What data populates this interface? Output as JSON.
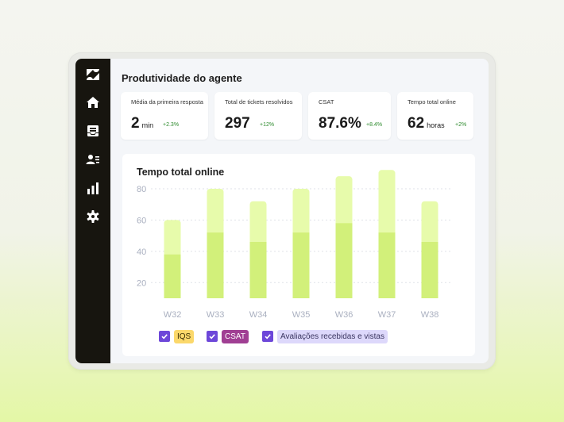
{
  "page": {
    "title": "Produtividade do agente"
  },
  "nav": {
    "items": [
      "logo",
      "home",
      "inbox",
      "contacts",
      "reports",
      "settings"
    ]
  },
  "cards": [
    {
      "label": "Média da primeira resposta",
      "value": "2",
      "unit": "min",
      "delta": "+2.3%"
    },
    {
      "label": "Total de tickets resolvidos",
      "value": "297",
      "unit": "",
      "delta": "+12%"
    },
    {
      "label": "CSAT",
      "value": "87.6%",
      "unit": "",
      "delta": "+8.4%"
    },
    {
      "label": "Tempo total online",
      "value": "62",
      "unit": "horas",
      "delta": "+2%"
    }
  ],
  "chart_data": {
    "type": "bar",
    "title": "Tempo total online",
    "categories": [
      "W32",
      "W33",
      "W34",
      "W35",
      "W36",
      "W37",
      "W38"
    ],
    "series": [
      {
        "values": [
          28,
          42,
          36,
          42,
          48,
          42,
          36
        ]
      },
      {
        "values": [
          22,
          28,
          26,
          28,
          30,
          40,
          26
        ]
      }
    ],
    "yticks": [
      20,
      40,
      60,
      80
    ],
    "ylim": [
      10,
      82
    ],
    "grid": true,
    "colors": {
      "base": "#d2f07a",
      "top": "#e7fbab"
    },
    "legend": [
      {
        "label": "IQS",
        "checked": true,
        "bg": "#fbd86b",
        "fg": "#3a2f05"
      },
      {
        "label": "CSAT",
        "checked": true,
        "bg": "#a03f93",
        "fg": "#ffffff"
      },
      {
        "label": "Avaliações recebidas e vistas",
        "checked": true,
        "bg": "#ddd8fb",
        "fg": "#3a3560"
      }
    ]
  }
}
